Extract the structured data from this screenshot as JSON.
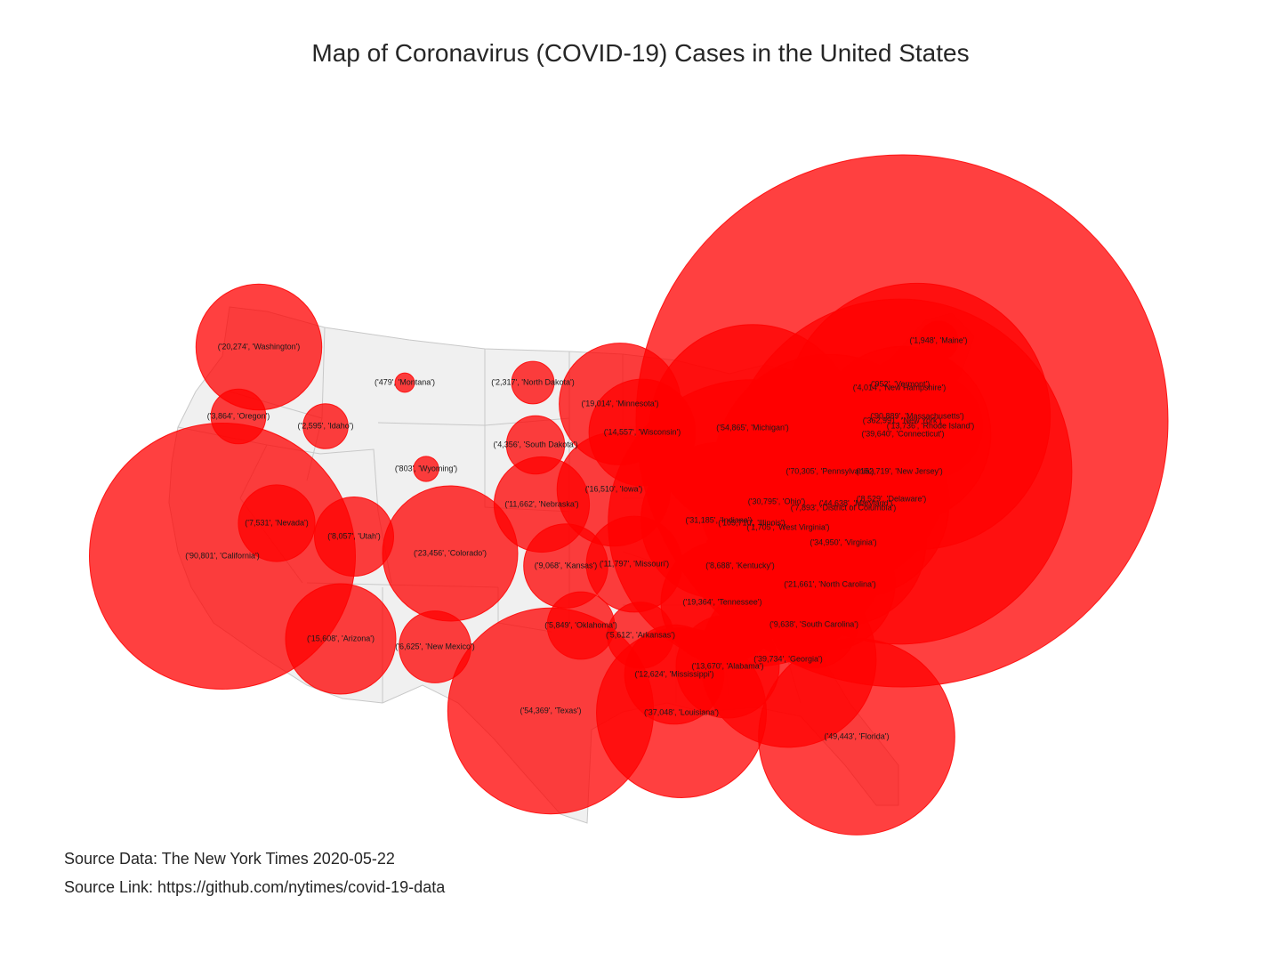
{
  "title": "Map of Coronavirus (COVID-19) Cases in the United States",
  "source": {
    "data_label": "Source Data: The New York Times 2020-05-22",
    "link_label": "Source Link: https://github.com/nytimes/covid-19-data"
  },
  "colors": {
    "bubble": "#ff0000",
    "land": "#f0f0f0",
    "border": "#c8c8c8"
  },
  "chart_data": {
    "type": "scatter",
    "title": "Map of Coronavirus (COVID-19) Cases in the United States",
    "series": [
      {
        "points": [
          {
            "state": "Washington",
            "cases": 20274,
            "label": "('20,274', 'Washington')"
          },
          {
            "state": "Oregon",
            "cases": 3864,
            "label": "('3,864', 'Oregon')"
          },
          {
            "state": "California",
            "cases": 90801,
            "label": "('90,801', 'California')"
          },
          {
            "state": "Idaho",
            "cases": 2595,
            "label": "('2,595', 'Idaho')"
          },
          {
            "state": "Nevada",
            "cases": 7531,
            "label": "('7,531', 'Nevada')"
          },
          {
            "state": "Montana",
            "cases": 479,
            "label": "('479', 'Montana')"
          },
          {
            "state": "Wyoming",
            "cases": 803,
            "label": "('803', 'Wyoming')"
          },
          {
            "state": "Utah",
            "cases": 8057,
            "label": "('8,057', 'Utah')"
          },
          {
            "state": "Arizona",
            "cases": 15608,
            "label": "('15,608', 'Arizona')"
          },
          {
            "state": "Colorado",
            "cases": 23456,
            "label": "('23,456', 'Colorado')"
          },
          {
            "state": "New Mexico",
            "cases": 6625,
            "label": "('6,625', 'New Mexico')"
          },
          {
            "state": "North Dakota",
            "cases": 2317,
            "label": "('2,317', 'North Dakota')"
          },
          {
            "state": "South Dakota",
            "cases": 4356,
            "label": "('4,356', 'South Dakota')"
          },
          {
            "state": "Nebraska",
            "cases": 11662,
            "label": "('11,662', 'Nebraska')"
          },
          {
            "state": "Kansas",
            "cases": 9068,
            "label": "('9,068', 'Kansas')"
          },
          {
            "state": "Oklahoma",
            "cases": 5849,
            "label": "('5,849', 'Oklahoma')"
          },
          {
            "state": "Texas",
            "cases": 54369,
            "label": "('54,369', 'Texas')"
          },
          {
            "state": "Minnesota",
            "cases": 19014,
            "label": "('19,014', 'Minnesota')"
          },
          {
            "state": "Iowa",
            "cases": 16510,
            "label": "('16,510', 'Iowa')"
          },
          {
            "state": "Missouri",
            "cases": 11797,
            "label": "('11,797', 'Missouri')"
          },
          {
            "state": "Arkansas",
            "cases": 5612,
            "label": "('5,612', 'Arkansas')"
          },
          {
            "state": "Louisiana",
            "cases": 37048,
            "label": "('37,048', 'Louisiana')"
          },
          {
            "state": "Wisconsin",
            "cases": 14557,
            "label": "('14,557', 'Wisconsin')"
          },
          {
            "state": "Illinois",
            "cases": 105710,
            "label": "('105,710', 'Illinois')"
          },
          {
            "state": "Michigan",
            "cases": 54865,
            "label": "('54,865', 'Michigan')"
          },
          {
            "state": "Indiana",
            "cases": 31185,
            "label": "('31,185', 'Indiana')"
          },
          {
            "state": "Ohio",
            "cases": 30795,
            "label": "('30,795', 'Ohio')"
          },
          {
            "state": "Kentucky",
            "cases": 8688,
            "label": "('8,688', 'Kentucky')"
          },
          {
            "state": "Tennessee",
            "cases": 19364,
            "label": "('19,364', 'Tennessee')"
          },
          {
            "state": "Mississippi",
            "cases": 12624,
            "label": "('12,624', 'Mississippi')"
          },
          {
            "state": "Alabama",
            "cases": 13670,
            "label": "('13,670', 'Alabama')"
          },
          {
            "state": "Georgia",
            "cases": 39734,
            "label": "('39,734', 'Georgia')"
          },
          {
            "state": "Florida",
            "cases": 49443,
            "label": "('49,443', 'Florida')"
          },
          {
            "state": "South Carolina",
            "cases": 9638,
            "label": "('9,638', 'South Carolina')"
          },
          {
            "state": "North Carolina",
            "cases": 21661,
            "label": "('21,661', 'North Carolina')"
          },
          {
            "state": "Virginia",
            "cases": 34950,
            "label": "('34,950', 'Virginia')"
          },
          {
            "state": "West Virginia",
            "cases": 1705,
            "label": "('1,705', 'West Virginia')"
          },
          {
            "state": "District of Columbia",
            "cases": 7893,
            "label": "('7,893', 'District of Columbia')"
          },
          {
            "state": "Maryland",
            "cases": 44638,
            "label": "('44,638', 'Maryland')"
          },
          {
            "state": "Delaware",
            "cases": 8529,
            "label": "('8,529', 'Delaware')"
          },
          {
            "state": "Pennsylvania",
            "cases": 70305,
            "label": "('70,305', 'Pennsylvania')"
          },
          {
            "state": "New Jersey",
            "cases": 152719,
            "label": "('152,719', 'New Jersey')"
          },
          {
            "state": "New York",
            "cases": 362991,
            "label": "('362,991', 'New York')"
          },
          {
            "state": "Connecticut",
            "cases": 39640,
            "label": "('39,640', 'Connecticut')"
          },
          {
            "state": "Rhode Island",
            "cases": 13736,
            "label": "('13,736', 'Rhode Island')"
          },
          {
            "state": "Massachusetts",
            "cases": 90889,
            "label": "('90,889', 'Massachusetts')"
          },
          {
            "state": "Vermont",
            "cases": 952,
            "label": "('952', 'Vermont')"
          },
          {
            "state": "New Hampshire",
            "cases": 4014,
            "label": "('4,014', 'New Hampshire')"
          },
          {
            "state": "Maine",
            "cases": 1948,
            "label": "('1,948', 'Maine')"
          }
        ]
      }
    ]
  }
}
